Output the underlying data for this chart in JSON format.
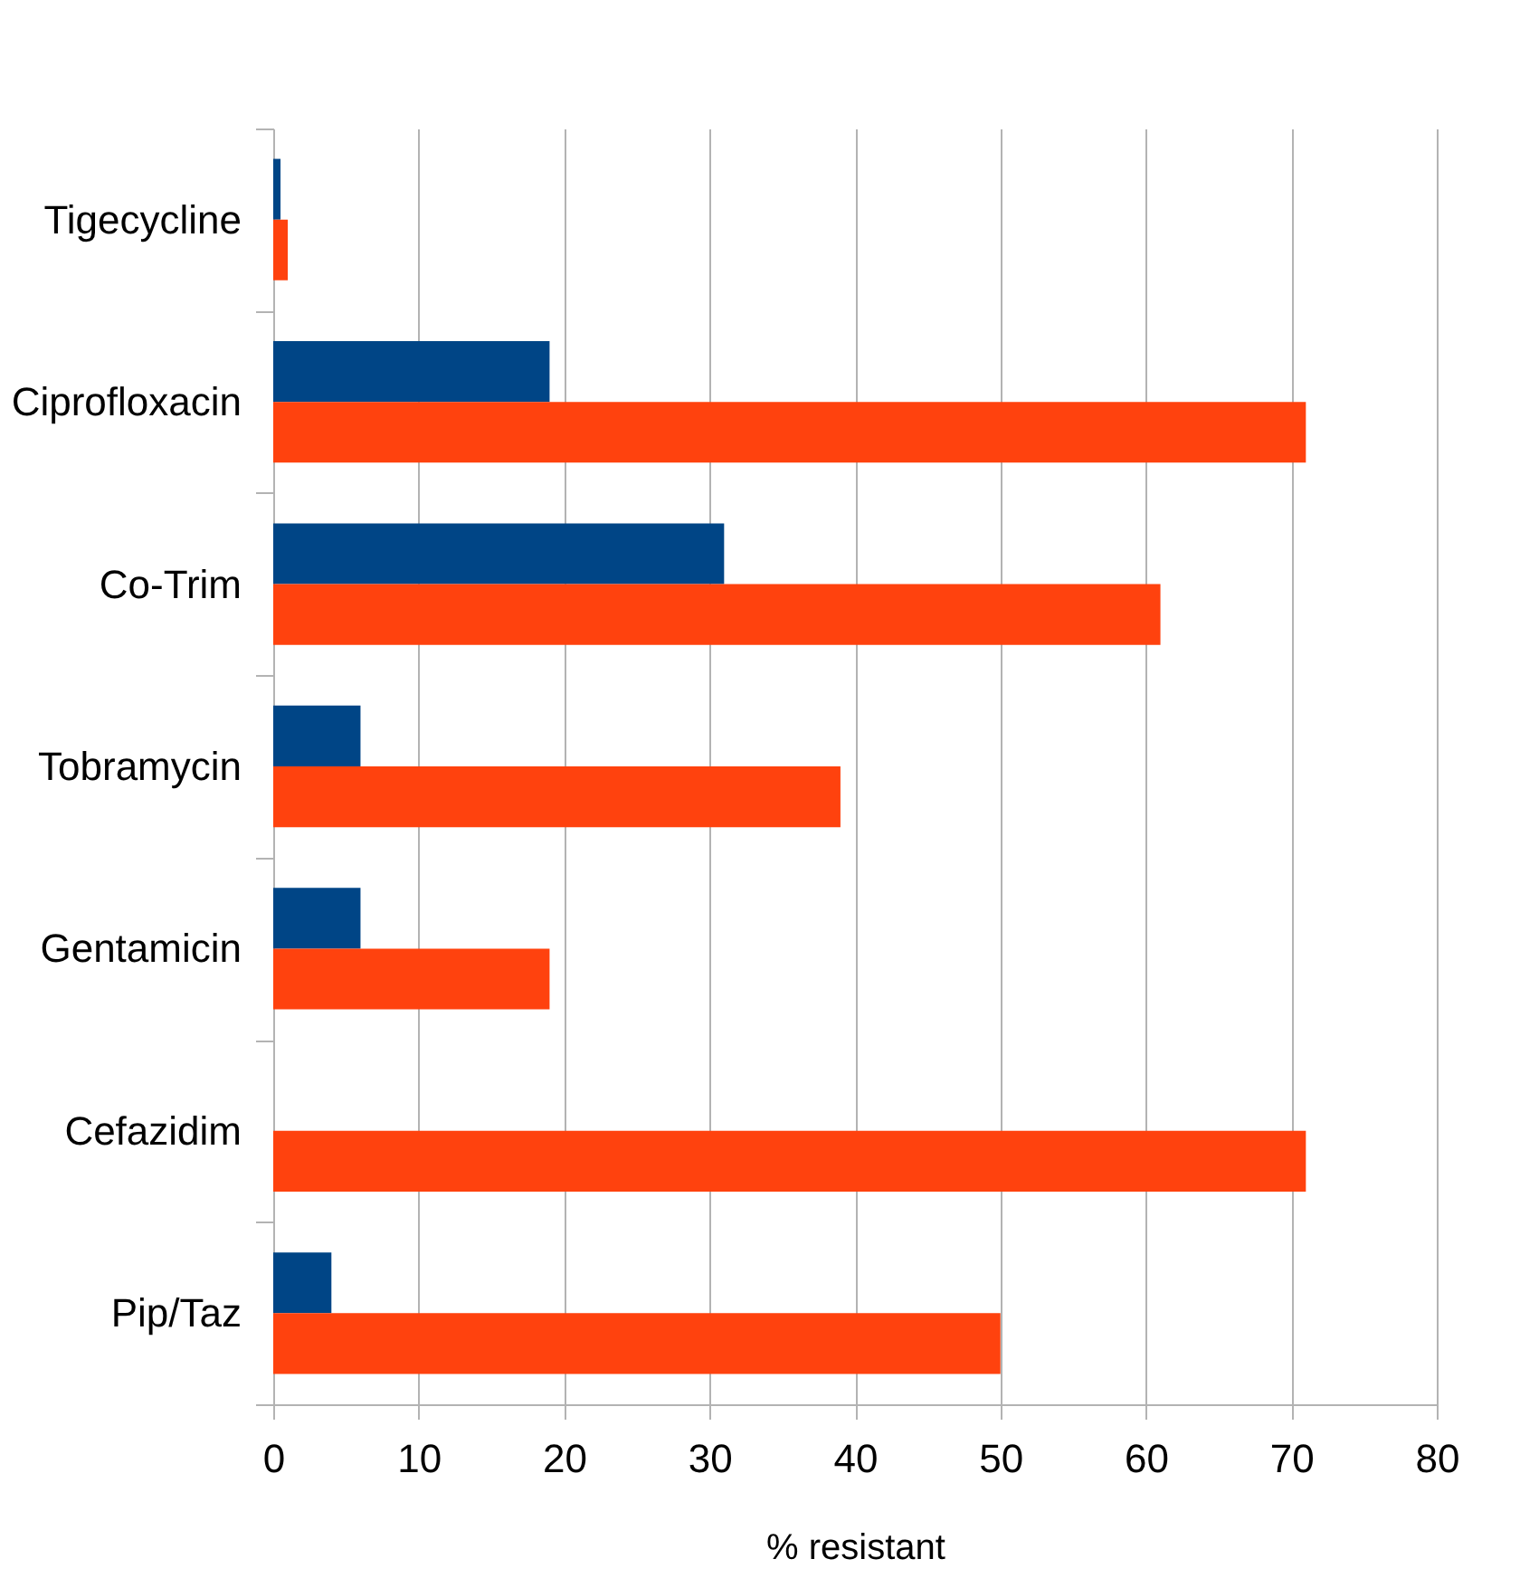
{
  "chart_data": {
    "type": "bar",
    "orientation": "horizontal",
    "xlabel": "% resistant",
    "categories": [
      "Tigecycline",
      "Ciprofloxacin",
      "Co-Trim",
      "Tobramycin",
      "Gentamicin",
      "Cefazidim",
      "Pip/Taz"
    ],
    "series": [
      {
        "color": "#004586",
        "values": [
          0.5,
          19,
          31,
          6,
          6,
          0,
          4
        ]
      },
      {
        "color": "#ff420e",
        "values": [
          1,
          71,
          61,
          39,
          19,
          71,
          50
        ]
      }
    ],
    "xlim": [
      0,
      80
    ],
    "xticks": [
      0,
      10,
      20,
      30,
      40,
      50,
      60,
      70,
      80
    ],
    "grid": "x",
    "legend": false
  }
}
